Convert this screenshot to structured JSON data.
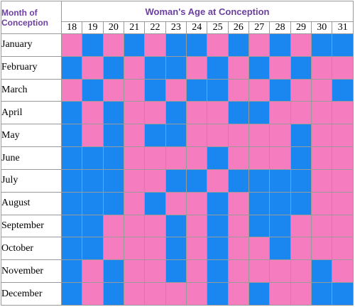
{
  "title": "Woman's Age at Conception",
  "corner_label_line1": "Month of",
  "corner_label_line2": "Conception",
  "colors": {
    "boy": "#1a86f0",
    "girl": "#f57dbf"
  },
  "chart_data": {
    "type": "heatmap",
    "title": "Woman's Age at Conception",
    "row_header": "Month of Conception",
    "columns": [
      "18",
      "19",
      "20",
      "21",
      "22",
      "23",
      "24",
      "25",
      "26",
      "27",
      "28",
      "29",
      "30",
      "31"
    ],
    "rows": [
      "January",
      "February",
      "March",
      "April",
      "May",
      "June",
      "July",
      "August",
      "September",
      "October",
      "November",
      "December"
    ],
    "legend_values": {
      "B": "blue",
      "G": "pink"
    },
    "values": [
      [
        "G",
        "B",
        "G",
        "B",
        "G",
        "B",
        "B",
        "G",
        "B",
        "G",
        "B",
        "G",
        "B",
        "B"
      ],
      [
        "B",
        "G",
        "B",
        "G",
        "B",
        "B",
        "G",
        "B",
        "G",
        "B",
        "G",
        "B",
        "G",
        "G"
      ],
      [
        "G",
        "B",
        "G",
        "G",
        "B",
        "G",
        "B",
        "B",
        "G",
        "G",
        "B",
        "G",
        "G",
        "B"
      ],
      [
        "B",
        "G",
        "B",
        "G",
        "G",
        "B",
        "G",
        "G",
        "B",
        "B",
        "G",
        "G",
        "G",
        "G"
      ],
      [
        "B",
        "G",
        "B",
        "G",
        "B",
        "B",
        "G",
        "G",
        "G",
        "G",
        "G",
        "B",
        "G",
        "G"
      ],
      [
        "B",
        "B",
        "B",
        "G",
        "G",
        "G",
        "G",
        "B",
        "G",
        "G",
        "G",
        "B",
        "G",
        "G"
      ],
      [
        "B",
        "B",
        "B",
        "G",
        "G",
        "B",
        "B",
        "G",
        "B",
        "B",
        "B",
        "B",
        "G",
        "G"
      ],
      [
        "B",
        "B",
        "B",
        "G",
        "B",
        "G",
        "G",
        "B",
        "G",
        "B",
        "B",
        "B",
        "G",
        "G"
      ],
      [
        "B",
        "B",
        "G",
        "G",
        "G",
        "B",
        "G",
        "B",
        "G",
        "B",
        "B",
        "G",
        "G",
        "G"
      ],
      [
        "B",
        "B",
        "G",
        "G",
        "G",
        "B",
        "G",
        "B",
        "G",
        "G",
        "B",
        "G",
        "G",
        "G"
      ],
      [
        "B",
        "G",
        "B",
        "G",
        "G",
        "B",
        "G",
        "B",
        "G",
        "G",
        "G",
        "G",
        "B",
        "G"
      ],
      [
        "B",
        "G",
        "B",
        "G",
        "G",
        "G",
        "G",
        "B",
        "G",
        "B",
        "G",
        "G",
        "B",
        "B"
      ]
    ]
  }
}
